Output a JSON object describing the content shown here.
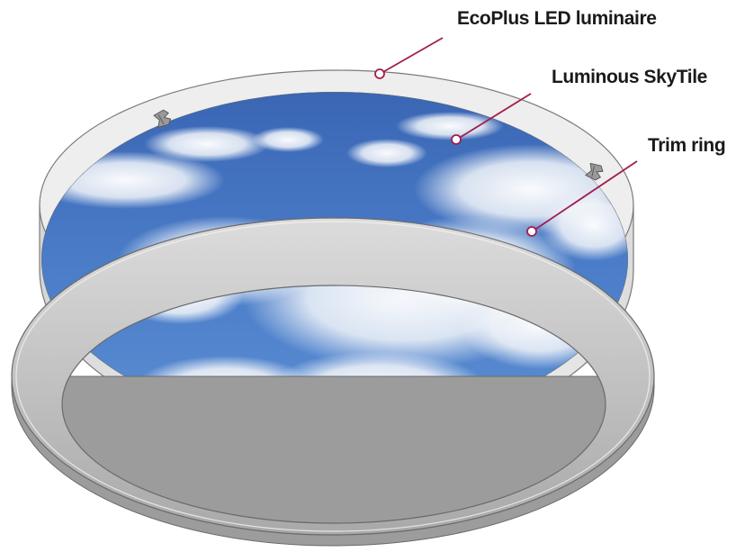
{
  "callouts": {
    "luminaire": "EcoPlus LED luminaire",
    "skytile": "Luminous SkyTile",
    "trim": "Trim ring"
  },
  "colors": {
    "leader_line": "#a11d4f",
    "sky_blue": "#3d6fbf",
    "housing": "#e7e7e7",
    "trim_ring": "#bdbdbd"
  }
}
